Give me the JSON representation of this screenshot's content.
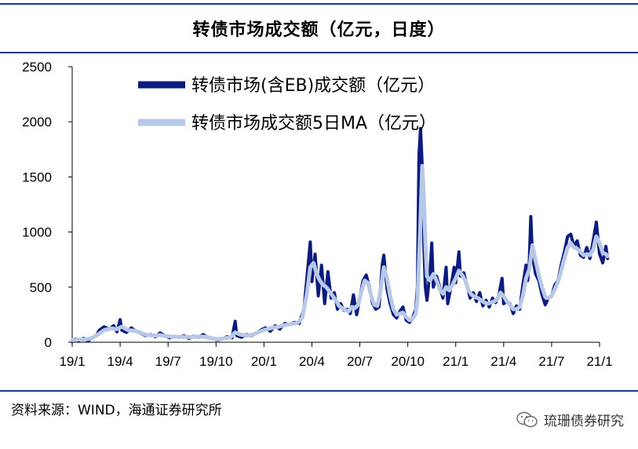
{
  "page": {
    "title": "转债市场成交额（亿元，日度）",
    "source": "资料来源：WIND，海通证券研究所",
    "brand": "琉珊债券研究",
    "brand_icon": "wechat-icon"
  },
  "chart_data": {
    "type": "line",
    "title": "转债市场成交额（亿元，日度）",
    "xlabel": "",
    "ylabel": "",
    "ylim": [
      0,
      2500
    ],
    "yticks": [
      "0",
      "500",
      "1000",
      "1500",
      "2000",
      "2500"
    ],
    "xtick_labels": [
      "19/1",
      "19/4",
      "19/7",
      "19/10",
      "20/1",
      "20/4",
      "20/7",
      "20/10",
      "21/1",
      "21/4",
      "21/7",
      "21/1"
    ],
    "xtick_months": [
      0,
      3,
      6,
      9,
      12,
      15,
      18,
      21,
      24,
      27,
      30,
      33
    ],
    "x_unit": "months since 2019-01",
    "xlim": [
      0,
      33
    ],
    "grid": false,
    "legend_position": "top-center",
    "series": [
      {
        "name": "转债市场(含EB)成交额（亿元）",
        "color": "#0b1b7e",
        "points": [
          [
            0.0,
            5
          ],
          [
            0.2,
            30
          ],
          [
            0.4,
            15
          ],
          [
            0.7,
            35
          ],
          [
            1.0,
            10
          ],
          [
            1.2,
            40
          ],
          [
            1.5,
            60
          ],
          [
            1.7,
            110
          ],
          [
            2.0,
            140
          ],
          [
            2.3,
            120
          ],
          [
            2.6,
            150
          ],
          [
            2.8,
            95
          ],
          [
            3.0,
            205
          ],
          [
            3.1,
            110
          ],
          [
            3.4,
            90
          ],
          [
            3.7,
            130
          ],
          [
            4.0,
            100
          ],
          [
            4.3,
            80
          ],
          [
            4.6,
            60
          ],
          [
            4.9,
            70
          ],
          [
            5.2,
            50
          ],
          [
            5.5,
            85
          ],
          [
            5.8,
            60
          ],
          [
            6.1,
            40
          ],
          [
            6.4,
            55
          ],
          [
            6.7,
            45
          ],
          [
            7.0,
            60
          ],
          [
            7.3,
            35
          ],
          [
            7.6,
            55
          ],
          [
            7.9,
            45
          ],
          [
            8.2,
            70
          ],
          [
            8.5,
            40
          ],
          [
            8.8,
            35
          ],
          [
            9.1,
            20
          ],
          [
            9.4,
            30
          ],
          [
            9.7,
            50
          ],
          [
            10.0,
            40
          ],
          [
            10.2,
            190
          ],
          [
            10.3,
            60
          ],
          [
            10.6,
            45
          ],
          [
            10.9,
            70
          ],
          [
            11.2,
            60
          ],
          [
            11.5,
            80
          ],
          [
            11.8,
            110
          ],
          [
            12.1,
            130
          ],
          [
            12.4,
            100
          ],
          [
            12.7,
            150
          ],
          [
            13.0,
            120
          ],
          [
            13.3,
            170
          ],
          [
            13.6,
            160
          ],
          [
            13.9,
            180
          ],
          [
            14.2,
            170
          ],
          [
            14.5,
            300
          ],
          [
            14.7,
            600
          ],
          [
            14.9,
            910
          ],
          [
            15.0,
            550
          ],
          [
            15.2,
            800
          ],
          [
            15.4,
            420
          ],
          [
            15.6,
            700
          ],
          [
            15.8,
            350
          ],
          [
            16.0,
            640
          ],
          [
            16.2,
            400
          ],
          [
            16.4,
            450
          ],
          [
            16.6,
            300
          ],
          [
            16.8,
            350
          ],
          [
            17.0,
            290
          ],
          [
            17.2,
            300
          ],
          [
            17.4,
            260
          ],
          [
            17.6,
            430
          ],
          [
            17.8,
            250
          ],
          [
            18.0,
            400
          ],
          [
            18.2,
            560
          ],
          [
            18.4,
            610
          ],
          [
            18.6,
            500
          ],
          [
            18.8,
            350
          ],
          [
            19.0,
            300
          ],
          [
            19.2,
            320
          ],
          [
            19.4,
            700
          ],
          [
            19.5,
            790
          ],
          [
            19.7,
            480
          ],
          [
            19.9,
            350
          ],
          [
            20.1,
            250
          ],
          [
            20.3,
            220
          ],
          [
            20.5,
            280
          ],
          [
            20.7,
            320
          ],
          [
            20.9,
            200
          ],
          [
            21.1,
            180
          ],
          [
            21.3,
            220
          ],
          [
            21.5,
            300
          ],
          [
            21.6,
            500
          ],
          [
            21.7,
            1700
          ],
          [
            21.8,
            1940
          ],
          [
            21.9,
            1600
          ],
          [
            22.0,
            900
          ],
          [
            22.1,
            500
          ],
          [
            22.2,
            380
          ],
          [
            22.4,
            650
          ],
          [
            22.5,
            900
          ],
          [
            22.6,
            500
          ],
          [
            22.8,
            600
          ],
          [
            23.0,
            500
          ],
          [
            23.2,
            400
          ],
          [
            23.4,
            680
          ],
          [
            23.5,
            350
          ],
          [
            23.7,
            500
          ],
          [
            23.9,
            680
          ],
          [
            24.0,
            540
          ],
          [
            24.2,
            820
          ],
          [
            24.3,
            600
          ],
          [
            24.5,
            630
          ],
          [
            24.7,
            520
          ],
          [
            24.9,
            400
          ],
          [
            25.1,
            450
          ],
          [
            25.3,
            370
          ],
          [
            25.5,
            450
          ],
          [
            25.7,
            330
          ],
          [
            25.9,
            380
          ],
          [
            26.1,
            320
          ],
          [
            26.3,
            400
          ],
          [
            26.5,
            360
          ],
          [
            26.7,
            430
          ],
          [
            26.9,
            580
          ],
          [
            27.0,
            350
          ],
          [
            27.2,
            370
          ],
          [
            27.4,
            350
          ],
          [
            27.6,
            260
          ],
          [
            27.8,
            330
          ],
          [
            28.0,
            300
          ],
          [
            28.2,
            520
          ],
          [
            28.4,
            700
          ],
          [
            28.5,
            560
          ],
          [
            28.6,
            720
          ],
          [
            28.7,
            1140
          ],
          [
            28.8,
            780
          ],
          [
            29.0,
            620
          ],
          [
            29.2,
            560
          ],
          [
            29.4,
            430
          ],
          [
            29.6,
            340
          ],
          [
            29.8,
            400
          ],
          [
            30.0,
            420
          ],
          [
            30.2,
            520
          ],
          [
            30.4,
            560
          ],
          [
            30.6,
            700
          ],
          [
            30.8,
            820
          ],
          [
            31.0,
            960
          ],
          [
            31.2,
            980
          ],
          [
            31.4,
            870
          ],
          [
            31.6,
            920
          ],
          [
            31.8,
            790
          ],
          [
            32.0,
            770
          ],
          [
            32.2,
            860
          ],
          [
            32.4,
            760
          ],
          [
            32.6,
            920
          ],
          [
            32.8,
            1090
          ],
          [
            33.0,
            800
          ],
          [
            33.2,
            720
          ],
          [
            33.4,
            870
          ],
          [
            33.5,
            760
          ]
        ]
      },
      {
        "name": "转债市场成交额5日MA（亿元）",
        "color": "#b7c9e6",
        "points": [
          [
            0.0,
            20
          ],
          [
            0.4,
            25
          ],
          [
            0.8,
            25
          ],
          [
            1.2,
            35
          ],
          [
            1.6,
            70
          ],
          [
            2.0,
            110
          ],
          [
            2.4,
            125
          ],
          [
            2.8,
            120
          ],
          [
            3.1,
            140
          ],
          [
            3.5,
            110
          ],
          [
            3.9,
            105
          ],
          [
            4.3,
            85
          ],
          [
            4.7,
            65
          ],
          [
            5.1,
            60
          ],
          [
            5.5,
            65
          ],
          [
            5.9,
            55
          ],
          [
            6.3,
            50
          ],
          [
            6.7,
            50
          ],
          [
            7.1,
            48
          ],
          [
            7.5,
            46
          ],
          [
            7.9,
            52
          ],
          [
            8.3,
            50
          ],
          [
            8.7,
            38
          ],
          [
            9.1,
            28
          ],
          [
            9.5,
            35
          ],
          [
            9.9,
            45
          ],
          [
            10.2,
            90
          ],
          [
            10.5,
            70
          ],
          [
            10.9,
            60
          ],
          [
            11.3,
            70
          ],
          [
            11.7,
            95
          ],
          [
            12.1,
            115
          ],
          [
            12.5,
            130
          ],
          [
            12.9,
            140
          ],
          [
            13.3,
            155
          ],
          [
            13.7,
            165
          ],
          [
            14.1,
            175
          ],
          [
            14.4,
            220
          ],
          [
            14.7,
            450
          ],
          [
            14.9,
            680
          ],
          [
            15.1,
            720
          ],
          [
            15.3,
            620
          ],
          [
            15.5,
            560
          ],
          [
            15.7,
            520
          ],
          [
            15.9,
            500
          ],
          [
            16.1,
            460
          ],
          [
            16.3,
            420
          ],
          [
            16.5,
            380
          ],
          [
            16.7,
            330
          ],
          [
            16.9,
            310
          ],
          [
            17.1,
            290
          ],
          [
            17.3,
            280
          ],
          [
            17.5,
            320
          ],
          [
            17.7,
            310
          ],
          [
            17.9,
            340
          ],
          [
            18.1,
            460
          ],
          [
            18.3,
            560
          ],
          [
            18.5,
            540
          ],
          [
            18.7,
            430
          ],
          [
            18.9,
            340
          ],
          [
            19.1,
            330
          ],
          [
            19.3,
            470
          ],
          [
            19.5,
            680
          ],
          [
            19.7,
            580
          ],
          [
            19.9,
            420
          ],
          [
            20.1,
            300
          ],
          [
            20.3,
            250
          ],
          [
            20.5,
            260
          ],
          [
            20.7,
            270
          ],
          [
            20.9,
            230
          ],
          [
            21.1,
            200
          ],
          [
            21.3,
            210
          ],
          [
            21.5,
            260
          ],
          [
            21.6,
            380
          ],
          [
            21.75,
            900
          ],
          [
            21.9,
            1600
          ],
          [
            22.0,
            1350
          ],
          [
            22.1,
            900
          ],
          [
            22.2,
            600
          ],
          [
            22.4,
            560
          ],
          [
            22.6,
            620
          ],
          [
            22.8,
            560
          ],
          [
            23.0,
            480
          ],
          [
            23.2,
            440
          ],
          [
            23.4,
            500
          ],
          [
            23.6,
            470
          ],
          [
            23.8,
            520
          ],
          [
            24.0,
            580
          ],
          [
            24.2,
            650
          ],
          [
            24.4,
            610
          ],
          [
            24.6,
            560
          ],
          [
            24.8,
            470
          ],
          [
            25.0,
            430
          ],
          [
            25.2,
            410
          ],
          [
            25.4,
            400
          ],
          [
            25.6,
            380
          ],
          [
            25.8,
            360
          ],
          [
            26.0,
            350
          ],
          [
            26.2,
            360
          ],
          [
            26.4,
            370
          ],
          [
            26.6,
            390
          ],
          [
            26.8,
            450
          ],
          [
            27.0,
            420
          ],
          [
            27.2,
            370
          ],
          [
            27.4,
            340
          ],
          [
            27.6,
            300
          ],
          [
            27.8,
            300
          ],
          [
            28.0,
            320
          ],
          [
            28.2,
            420
          ],
          [
            28.4,
            580
          ],
          [
            28.6,
            660
          ],
          [
            28.8,
            880
          ],
          [
            29.0,
            740
          ],
          [
            29.2,
            610
          ],
          [
            29.4,
            500
          ],
          [
            29.6,
            410
          ],
          [
            29.8,
            400
          ],
          [
            30.0,
            420
          ],
          [
            30.2,
            480
          ],
          [
            30.4,
            550
          ],
          [
            30.6,
            650
          ],
          [
            30.8,
            760
          ],
          [
            31.0,
            860
          ],
          [
            31.2,
            900
          ],
          [
            31.4,
            860
          ],
          [
            31.6,
            850
          ],
          [
            31.8,
            820
          ],
          [
            32.0,
            790
          ],
          [
            32.2,
            800
          ],
          [
            32.4,
            790
          ],
          [
            32.6,
            840
          ],
          [
            32.8,
            960
          ],
          [
            33.0,
            900
          ],
          [
            33.2,
            810
          ],
          [
            33.4,
            800
          ],
          [
            33.5,
            780
          ]
        ]
      }
    ]
  }
}
